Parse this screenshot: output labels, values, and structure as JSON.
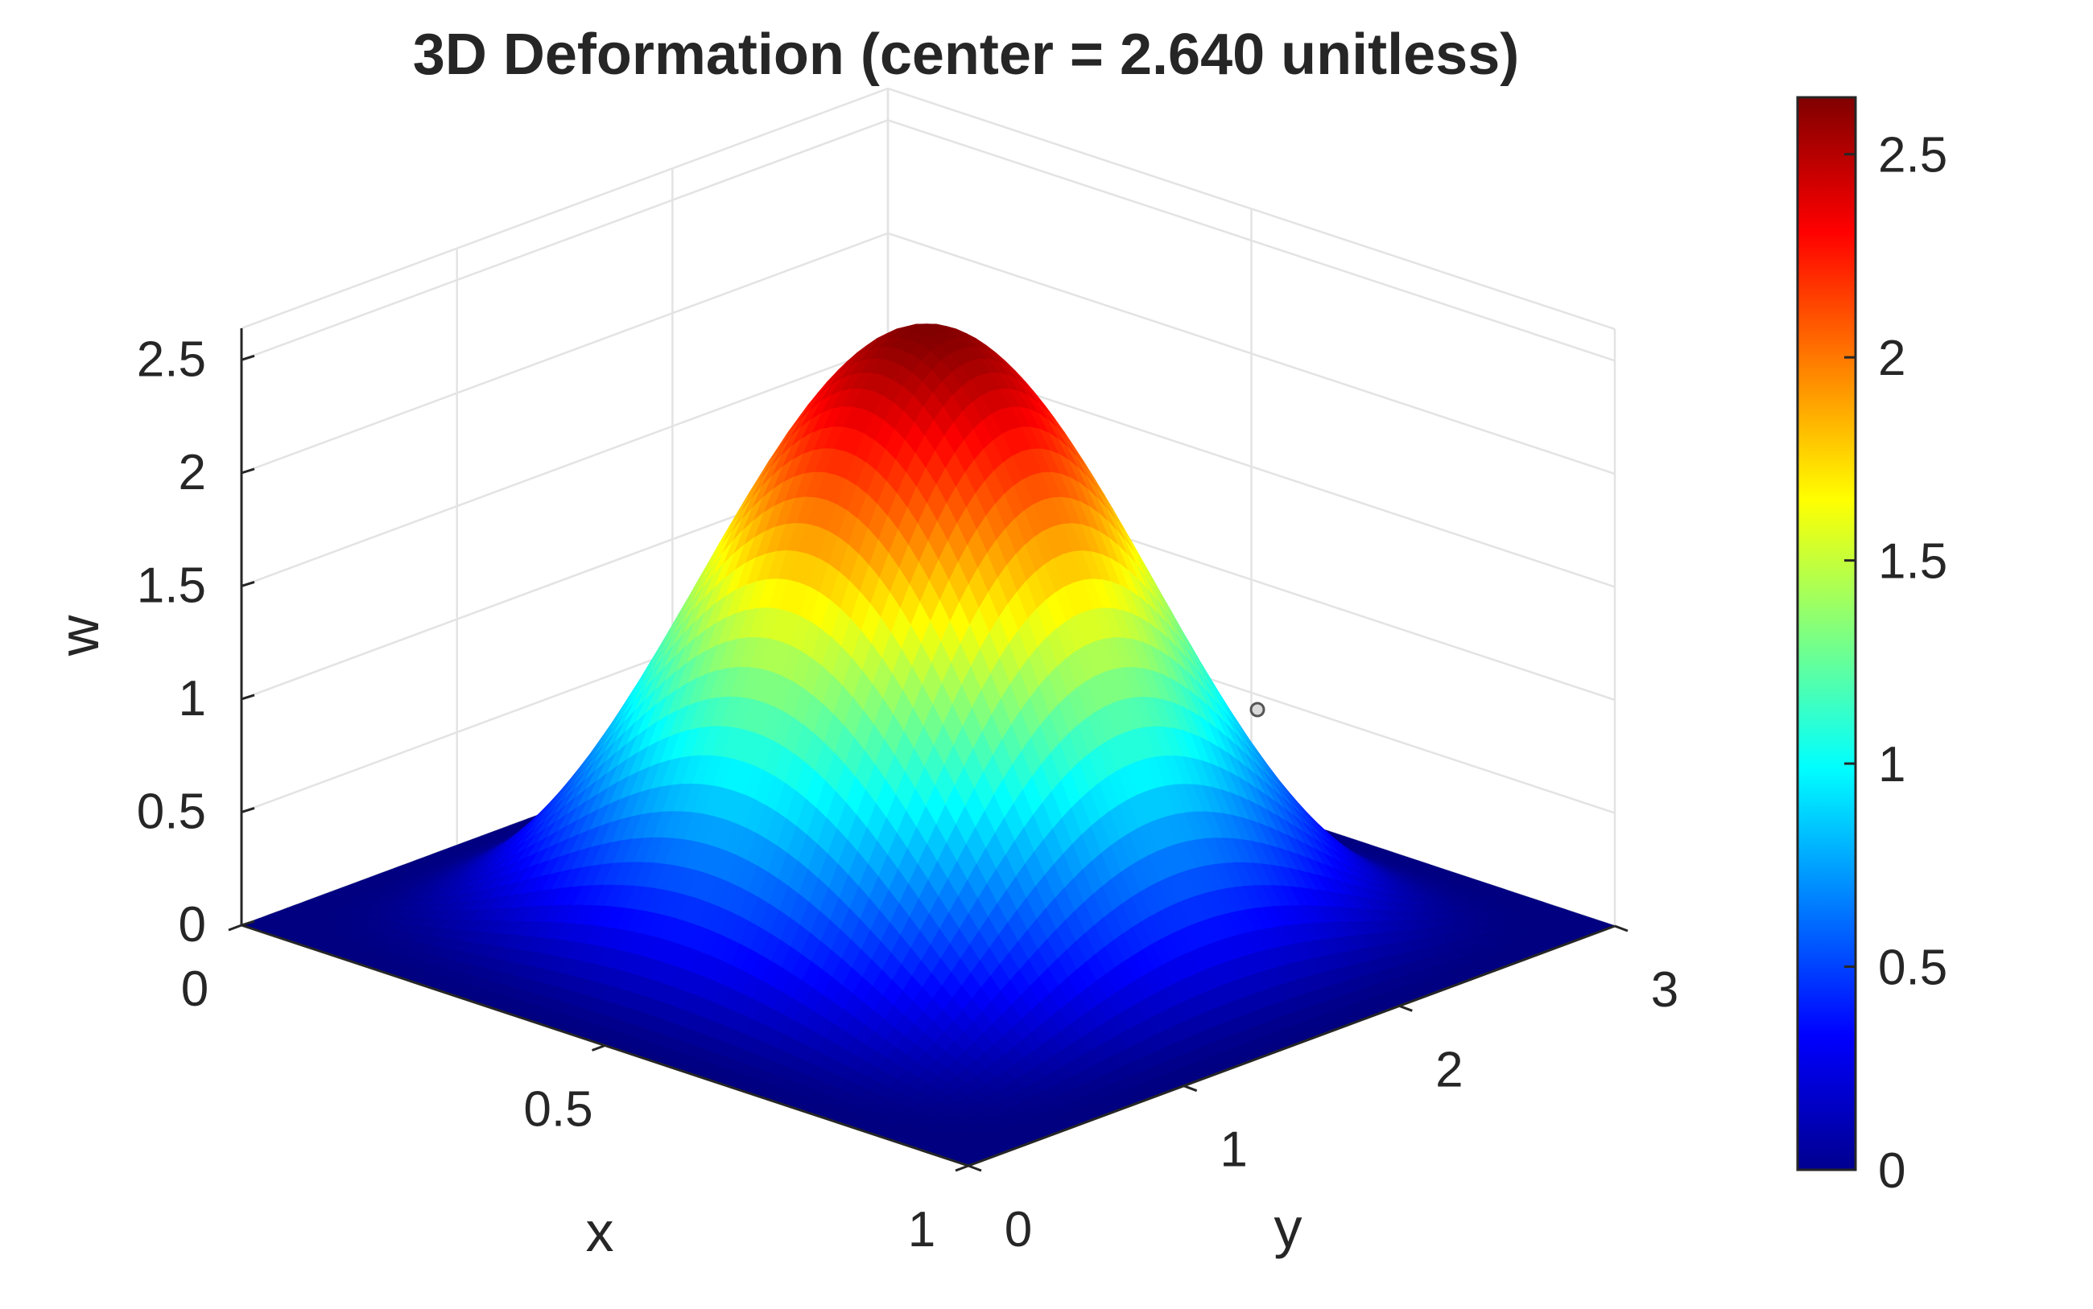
{
  "chart_data": {
    "type": "surface",
    "title": "3D Deformation (center = 2.640 unitless)",
    "xlabel": "x",
    "ylabel": "y",
    "zlabel": "w",
    "xlim": [
      0,
      1
    ],
    "ylim": [
      0,
      3
    ],
    "zlim": [
      0,
      2.64
    ],
    "x_ticks": [
      "0",
      "0.5",
      "1"
    ],
    "y_ticks": [
      "0",
      "1",
      "2",
      "3"
    ],
    "z_ticks": [
      "0",
      "0.5",
      "1",
      "1.5",
      "2",
      "2.5"
    ],
    "surface": "w = 2.640 * sin^2(pi*x) * sin^2(pi*y/3)",
    "peak": {
      "x": 0.5,
      "y": 1.5,
      "w": 2.64
    },
    "colormap": "jet",
    "colorbar": {
      "range": [
        0,
        2.64
      ],
      "ticks": [
        "0",
        "0.5",
        "1",
        "1.5",
        "2",
        "2.5"
      ],
      "placement": "right"
    },
    "grid": true,
    "box_view": "3d"
  }
}
